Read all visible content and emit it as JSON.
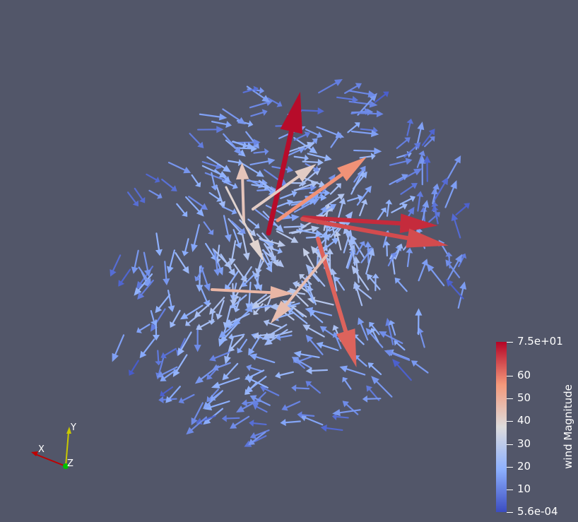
{
  "scalar_bar": {
    "title": "wind Magnitude",
    "ticks": [
      {
        "label": "7.5e+01",
        "value": 75
      },
      {
        "label": "60",
        "value": 60
      },
      {
        "label": "50",
        "value": 50
      },
      {
        "label": "40",
        "value": 40
      },
      {
        "label": "30",
        "value": 30
      },
      {
        "label": "20",
        "value": 20
      },
      {
        "label": "10",
        "value": 10
      },
      {
        "label": "5.6e-04",
        "value": 0.00056
      }
    ],
    "range": [
      0.00056,
      75
    ],
    "colormap": [
      "#3b4cc0",
      "#8db0fe",
      "#dddcdc",
      "#f4987a",
      "#b40426"
    ]
  },
  "orientation_axes": {
    "x_label": "X",
    "y_label": "Y",
    "z_label": "Z",
    "x_color": "#c00000",
    "y_color": "#c8c800",
    "z_color": "#00c000"
  },
  "background_color": "#525669"
}
